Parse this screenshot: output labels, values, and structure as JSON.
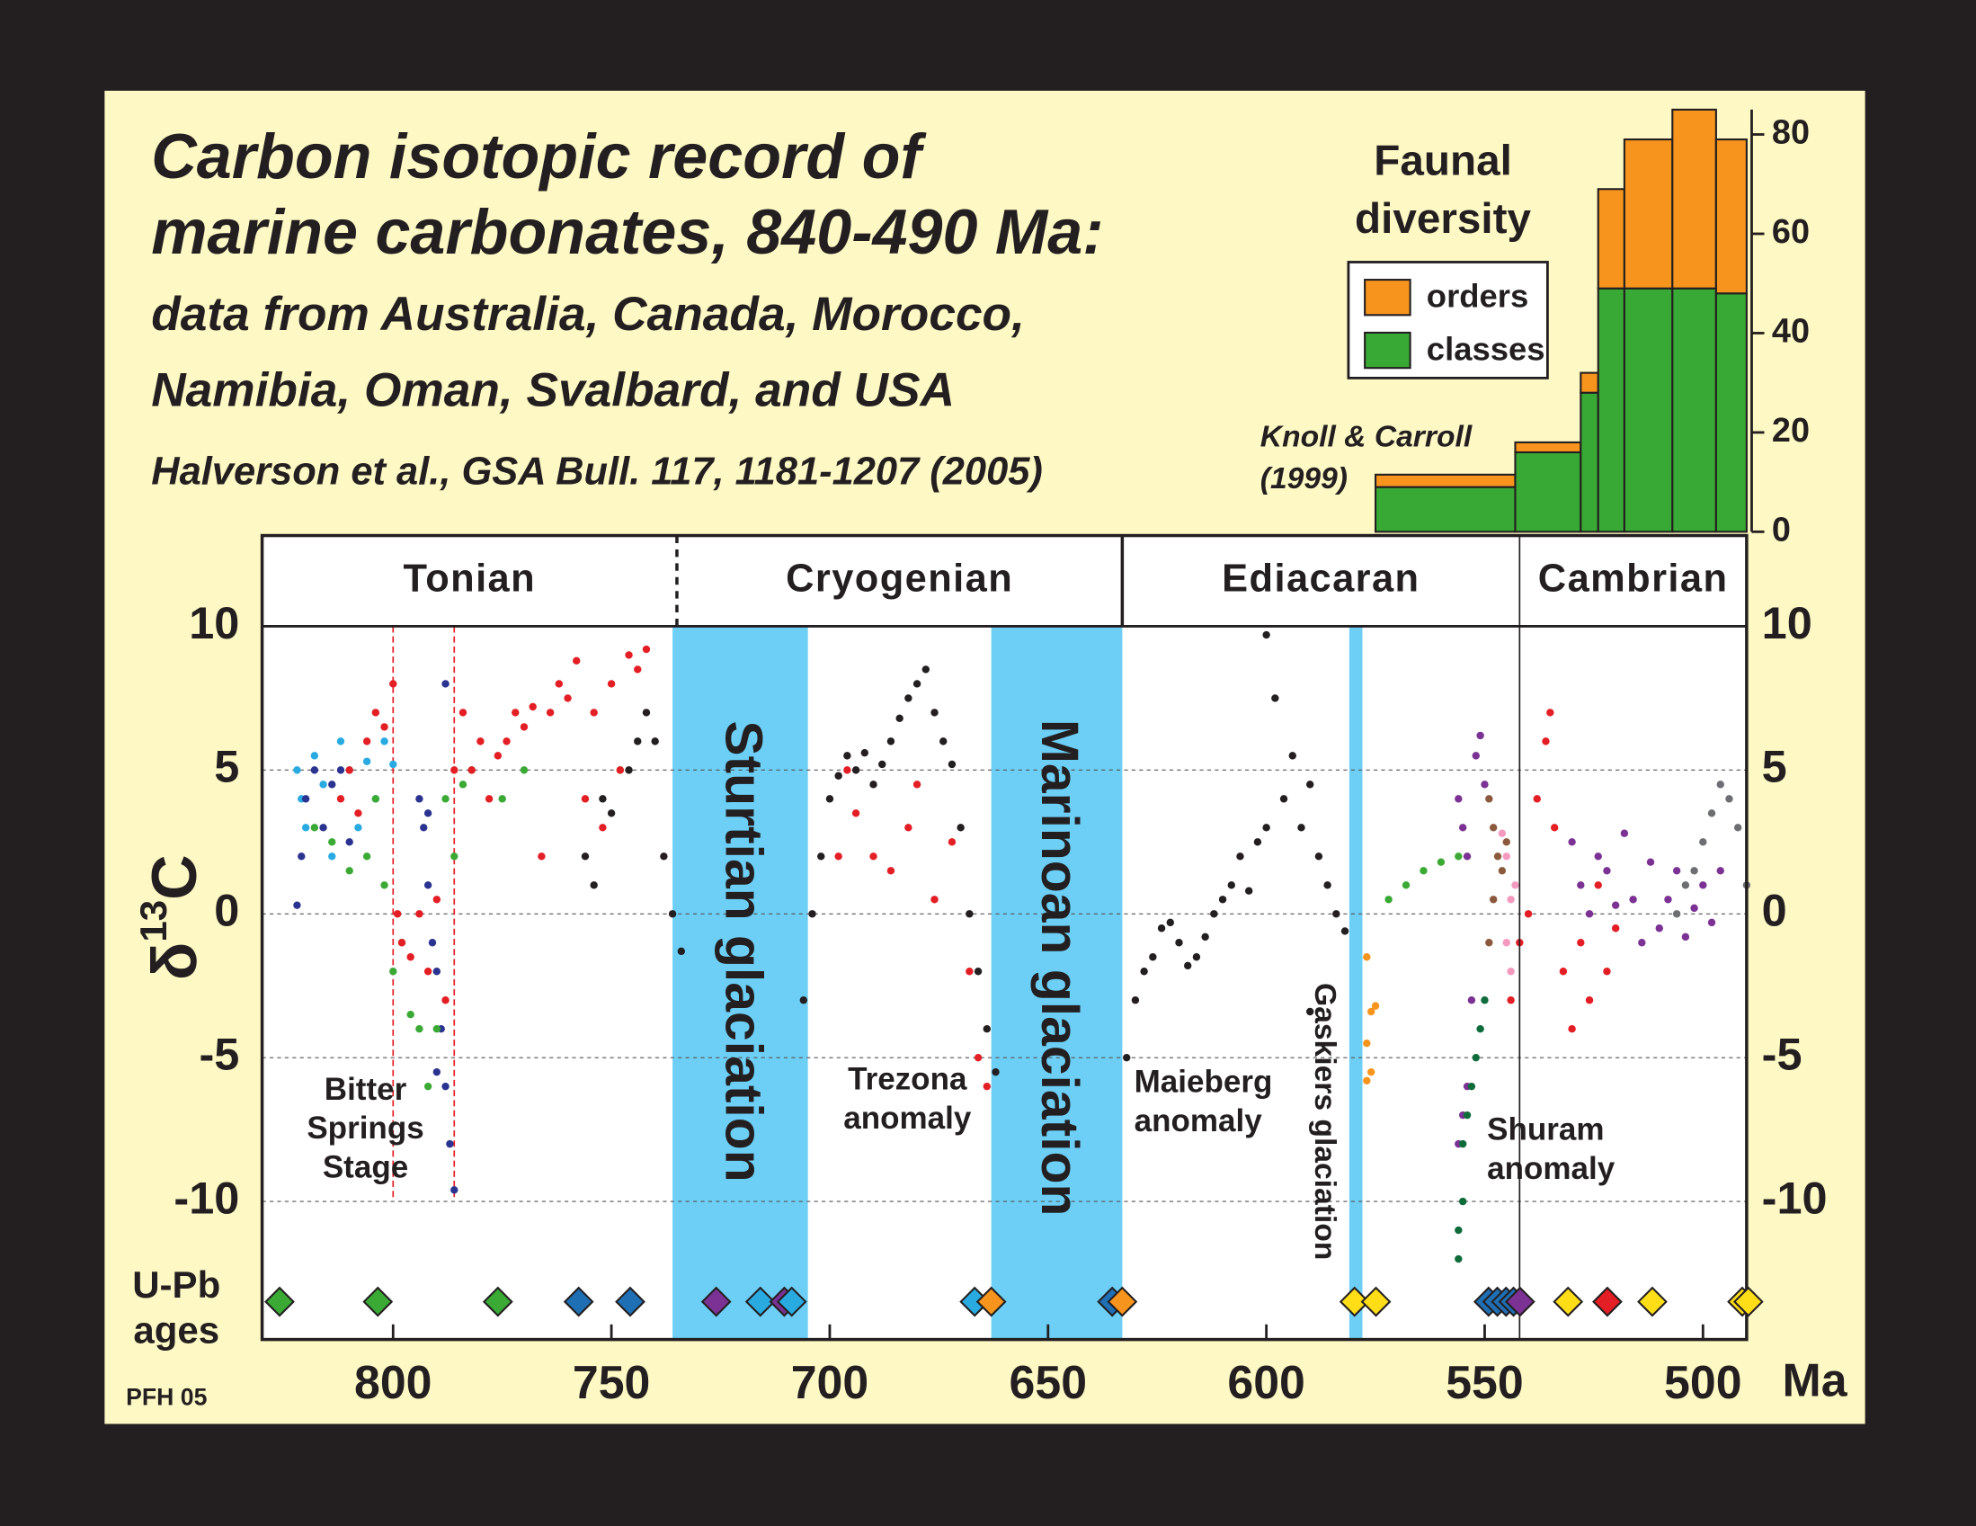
{
  "chart_data": [
    {
      "type": "scatter",
      "title": [
        "Carbon isotopic record of",
        "marine carbonates,  840-490 Ma:"
      ],
      "subtitle": [
        "data from Australia, Canada, Morocco,",
        "Namibia, Oman, Svalbard, and USA"
      ],
      "source": "Halverson et al., GSA Bull. 117, 1181-1207 (2005)",
      "y_label": {
        "symbol": "δ",
        "superscript": "13",
        "element": "C"
      },
      "x_label": "Ma",
      "credit": "PFH 05",
      "xlim": [
        830,
        490
      ],
      "xticks": [
        800,
        750,
        700,
        650,
        600,
        550,
        500
      ],
      "ylim": [
        -14.8,
        10
      ],
      "yticks": [
        -10,
        -5,
        0,
        5,
        10
      ],
      "grid": true,
      "periods": [
        "Tonian",
        "Cryogenian",
        "Ediacaran",
        "Cambrian"
      ],
      "period_boundaries": [
        {
          "value": 735,
          "dashed": true
        },
        {
          "value": 633,
          "dashed": false
        },
        {
          "value": 542,
          "dashed": false,
          "through_plot": true
        }
      ],
      "glaciations": [
        {
          "name": "Sturtian glaciation",
          "start": 736,
          "end": 705,
          "color": "#6dcff6"
        },
        {
          "name": "Marinoan glaciation",
          "start": 663,
          "end": 633,
          "color": "#6dcff6"
        },
        {
          "name": "Gaskiers glaciation",
          "start": 581,
          "end": 578,
          "color": "#6dcff6"
        }
      ],
      "bitter_springs_bounds": [
        800,
        786
      ],
      "annotations": [
        [
          "Bitter",
          "Springs",
          "Stage"
        ],
        [
          "Trezona",
          "anomaly"
        ],
        [
          "Maieberg",
          "anomaly"
        ],
        [
          "Shuram",
          "anomaly"
        ]
      ],
      "series": [
        {
          "color": "#29abe2",
          "x": [
            822,
            821,
            820,
            818,
            816,
            814,
            812,
            810,
            808,
            806,
            804,
            802,
            800
          ],
          "values": [
            5,
            4,
            3,
            5.5,
            4.5,
            2,
            6,
            5,
            3,
            5.3,
            4,
            6,
            5.2
          ]
        },
        {
          "color": "#2b3390",
          "x": [
            822,
            821,
            820,
            818,
            816,
            814,
            812,
            810,
            794,
            793,
            792,
            791,
            790,
            789,
            788,
            787,
            786,
            788,
            790,
            792
          ],
          "values": [
            0.3,
            2,
            4,
            5,
            3,
            4.5,
            5,
            2.5,
            4,
            3,
            1,
            -1,
            -2,
            -4,
            -6,
            -8,
            -9.6,
            8,
            -5.5,
            3.5
          ]
        },
        {
          "color": "#3aaa35",
          "x": [
            818,
            814,
            810,
            806,
            804,
            802,
            800,
            798,
            796,
            794,
            792,
            790,
            788,
            786,
            784,
            782,
            775,
            770,
            748,
            572,
            568,
            564,
            560,
            556
          ],
          "values": [
            3,
            2.5,
            1.5,
            2,
            4,
            1,
            -2,
            -1,
            -3.5,
            -4,
            -6,
            -4,
            4,
            2,
            4.5,
            5,
            4,
            5,
            5,
            0.5,
            1,
            1.5,
            1.8,
            2
          ]
        },
        {
          "color": "#e31e24",
          "x": [
            812,
            810,
            808,
            806,
            804,
            802,
            800,
            799,
            798,
            796,
            794,
            792,
            790,
            788,
            786,
            784,
            782,
            780,
            778,
            776,
            774,
            772,
            770,
            768,
            766,
            764,
            762,
            760,
            758,
            756,
            754,
            752,
            750,
            748,
            746,
            744,
            742,
            698,
            696,
            694,
            690,
            686,
            682,
            680,
            676,
            672,
            668,
            666,
            664,
            544,
            542,
            540,
            538,
            536,
            535,
            534,
            532,
            530,
            528,
            526,
            524,
            522,
            520
          ],
          "values": [
            4,
            5,
            3.5,
            6,
            7,
            6.5,
            8,
            0,
            -1,
            -1.5,
            0,
            -2,
            0.5,
            -3,
            5,
            7,
            5,
            6,
            4,
            5.5,
            6,
            7,
            6.5,
            7.2,
            2,
            7,
            8,
            7.5,
            8.8,
            4,
            7,
            3,
            8,
            5,
            9,
            8.5,
            9.2,
            2,
            5,
            3.5,
            2,
            1.5,
            3,
            4.5,
            0.5,
            2.5,
            -2,
            -5,
            -6,
            -3,
            -1,
            0,
            4,
            6,
            7,
            3,
            -2,
            -4,
            -1,
            -3,
            1,
            -2,
            -0.5
          ]
        },
        {
          "color": "#231f20",
          "x": [
            756,
            754,
            752,
            750,
            746,
            744,
            742,
            740,
            738,
            736,
            734,
            706,
            704,
            702,
            700,
            698,
            696,
            694,
            692,
            690,
            688,
            686,
            684,
            682,
            680,
            678,
            676,
            674,
            672,
            670,
            668,
            666,
            664,
            662,
            632,
            630,
            628,
            626,
            624,
            622,
            620,
            618,
            616,
            614,
            612,
            610,
            608,
            606,
            604,
            602,
            600,
            600,
            598,
            596,
            594,
            592,
            590,
            588,
            586,
            584,
            590,
            582
          ],
          "values": [
            2,
            1,
            4,
            3.5,
            5,
            6,
            7,
            6,
            2,
            0,
            -1.3,
            -3,
            0,
            2,
            4,
            4.8,
            5.5,
            5,
            5.6,
            4.5,
            5.2,
            6,
            6.8,
            7.5,
            8,
            8.5,
            7,
            6,
            5.2,
            3,
            0,
            -2,
            -4,
            -5.5,
            -5,
            -3,
            -2,
            -1.5,
            -0.5,
            -0.3,
            -1,
            -1.8,
            -1.5,
            -0.8,
            0,
            0.5,
            1,
            2,
            0.8,
            2.5,
            9.7,
            3,
            7.5,
            4,
            5.5,
            3,
            4.5,
            2,
            1,
            0,
            -3.4,
            -0.6
          ]
        },
        {
          "color": "#f7941d",
          "x": [
            577,
            576,
            575,
            577,
            576,
            577
          ],
          "values": [
            -1.5,
            -3.4,
            -3.2,
            -4.5,
            -5.5,
            -5.8
          ]
        },
        {
          "color": "#7b3294",
          "x": [
            556,
            555,
            554,
            552,
            551,
            550,
            553,
            554,
            555,
            556,
            530,
            528,
            526,
            524,
            522,
            520,
            518,
            516,
            514,
            512,
            510,
            508,
            506,
            504,
            502,
            500,
            498,
            496
          ],
          "values": [
            4,
            3,
            2,
            5.5,
            6.2,
            4.5,
            -3,
            -6,
            -7,
            -8,
            2.5,
            1,
            0,
            2,
            1.5,
            0.3,
            2.8,
            0.5,
            -1,
            1.8,
            -0.5,
            0.5,
            1.5,
            -0.8,
            0.2,
            1,
            -0.3,
            1.5
          ]
        },
        {
          "color": "#8b5a3c",
          "x": [
            549,
            548,
            547,
            546,
            545,
            548,
            549
          ],
          "values": [
            4,
            3,
            2,
            1.5,
            2.5,
            0.5,
            -1
          ]
        },
        {
          "color": "#f49ac1",
          "x": [
            546,
            545,
            544,
            543,
            545,
            544
          ],
          "values": [
            2.8,
            2,
            0.5,
            1,
            -1,
            -2
          ]
        },
        {
          "color": "#0e6b3a",
          "x": [
            556,
            556,
            555,
            555,
            554,
            553,
            552,
            551,
            550
          ],
          "values": [
            -12,
            -11,
            -10,
            -8,
            -7,
            -6,
            -5,
            -4,
            -3
          ]
        },
        {
          "color": "#6d6e71",
          "x": [
            506,
            504,
            502,
            500,
            498,
            496,
            494,
            492,
            490
          ],
          "values": [
            0,
            1,
            1.5,
            2.5,
            3.5,
            4.5,
            4,
            3,
            1
          ]
        }
      ],
      "u_pb_label": [
        "U-Pb",
        "ages"
      ],
      "u_pb_ages": {
        "x": [
          826,
          803.5,
          776,
          757.5,
          745.7,
          726,
          715.9,
          710.4,
          708.7,
          666.8,
          663,
          635.3,
          633,
          579.8,
          574.9,
          549.1,
          547.1,
          545.1,
          543.4,
          541.9,
          530.9,
          521.9,
          511.6,
          491,
          489.6
        ],
        "colors": [
          "#3aaa35",
          "#3aaa35",
          "#3aaa35",
          "#1f6fb5",
          "#1f6fb5",
          "#7b3294",
          "#29abe2",
          "#7b3294",
          "#29abe2",
          "#29abe2",
          "#f7941d",
          "#1f6fb5",
          "#f7941d",
          "#ffde17",
          "#ffde17",
          "#1f6fb5",
          "#1f6fb5",
          "#1f6fb5",
          "#1f6fb5",
          "#7b3294",
          "#ffde17",
          "#e31e24",
          "#ffde17",
          "#ffde17",
          "#ffde17"
        ]
      }
    },
    {
      "type": "histogram",
      "title": [
        "Faunal",
        "diversity"
      ],
      "source": [
        "Knoll & Carroll",
        "(1999)"
      ],
      "bins": [
        575,
        543,
        528,
        524,
        518,
        507,
        497,
        490
      ],
      "ylim": [
        0,
        85
      ],
      "yticks": [
        0,
        20,
        40,
        60,
        80
      ],
      "series": [
        {
          "name": "classes",
          "color": "#39a935",
          "values": [
            9,
            16,
            28,
            49,
            49,
            49,
            48
          ]
        },
        {
          "name": "orders",
          "color": "#f7941d",
          "values": [
            2.5,
            2,
            4,
            20,
            30,
            36,
            31
          ]
        }
      ]
    }
  ]
}
